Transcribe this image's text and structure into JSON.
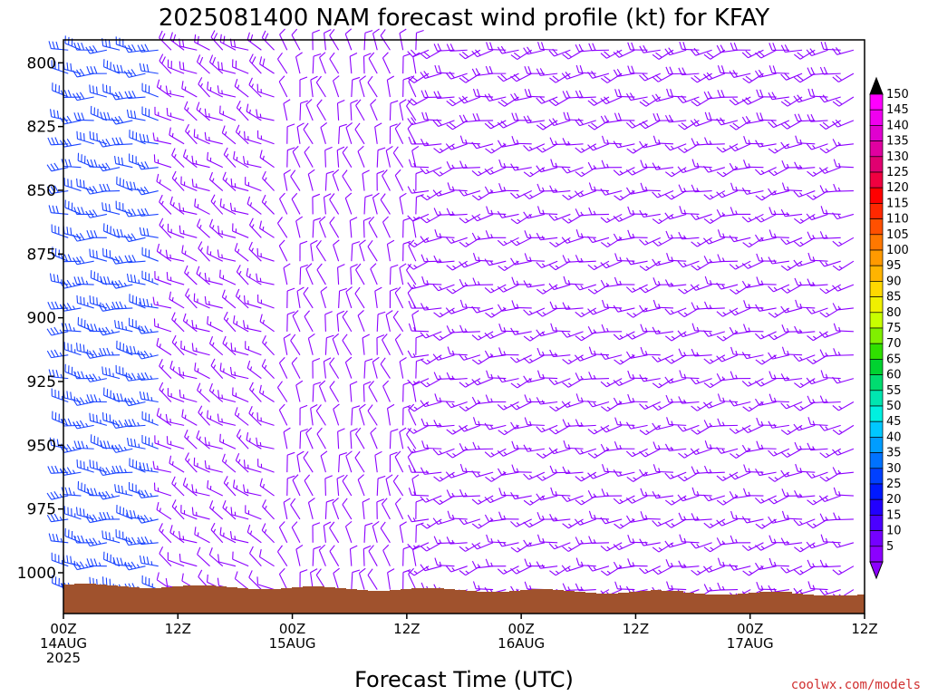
{
  "chart_data": {
    "type": "wind-barb",
    "title": "2025081400 NAM forecast wind profile (kt) for KFAY",
    "xlabel": "Forecast Time (UTC)",
    "ylabel": "",
    "credit": "coolwx.com/models",
    "y_axis": {
      "ticks": [
        800,
        825,
        850,
        875,
        900,
        925,
        950,
        975,
        1000
      ],
      "range": [
        791,
        1016
      ],
      "unit": "hPa"
    },
    "x_axis": {
      "range_hours": [
        0,
        84
      ],
      "ticks": [
        {
          "hour": 0,
          "lines": [
            "00Z",
            "14AUG",
            "2025"
          ]
        },
        {
          "hour": 12,
          "lines": [
            "12Z"
          ]
        },
        {
          "hour": 24,
          "lines": [
            "00Z",
            "15AUG"
          ]
        },
        {
          "hour": 36,
          "lines": [
            "12Z"
          ]
        },
        {
          "hour": 48,
          "lines": [
            "00Z",
            "16AUG"
          ]
        },
        {
          "hour": 60,
          "lines": [
            "12Z"
          ]
        },
        {
          "hour": 72,
          "lines": [
            "00Z",
            "17AUG"
          ]
        },
        {
          "hour": 84,
          "lines": [
            "12Z"
          ]
        }
      ]
    },
    "colorbar": {
      "unit": "kt",
      "labels": [
        5,
        10,
        15,
        20,
        25,
        30,
        35,
        40,
        45,
        50,
        55,
        60,
        65,
        70,
        75,
        80,
        85,
        90,
        95,
        100,
        105,
        110,
        115,
        120,
        125,
        130,
        135,
        140,
        145,
        150
      ],
      "colors": [
        "#8c00ff",
        "#7500ff",
        "#4b00ff",
        "#2200ff",
        "#0019ff",
        "#0040ff",
        "#0072ff",
        "#009dff",
        "#00c8ff",
        "#00f0e0",
        "#00e6b0",
        "#00dc70",
        "#00d230",
        "#30e000",
        "#80f000",
        "#c8ff00",
        "#f0f000",
        "#ffd800",
        "#ffb400",
        "#ff9a00",
        "#ff7800",
        "#ff5000",
        "#ff2800",
        "#ff0000",
        "#f00040",
        "#e00070",
        "#e000a0",
        "#e000d0",
        "#f000f0",
        "#ff00ff"
      ]
    },
    "wind_regimes": [
      {
        "hours": [
          0,
          10.5
        ],
        "direction_deg_from": 275,
        "speed_kt_top": 30,
        "speed_kt_bottom": 36,
        "color": "#1a44ff"
      },
      {
        "hours": [
          11,
          23
        ],
        "direction_deg_from": 300,
        "speed_kt_top": 18,
        "speed_kt_bottom": 12,
        "color": "#8c00ff"
      },
      {
        "hours": [
          23,
          37
        ],
        "direction_deg_from": 345,
        "speed_kt_top": 10,
        "speed_kt_bottom": 8,
        "color": "#8c00ff"
      },
      {
        "hours": [
          37,
          84
        ],
        "direction_deg_from": 255,
        "speed_kt_top": 18,
        "speed_kt_bottom": 15,
        "color": "#8c00ff"
      }
    ],
    "surface_color": "#a0522d"
  }
}
